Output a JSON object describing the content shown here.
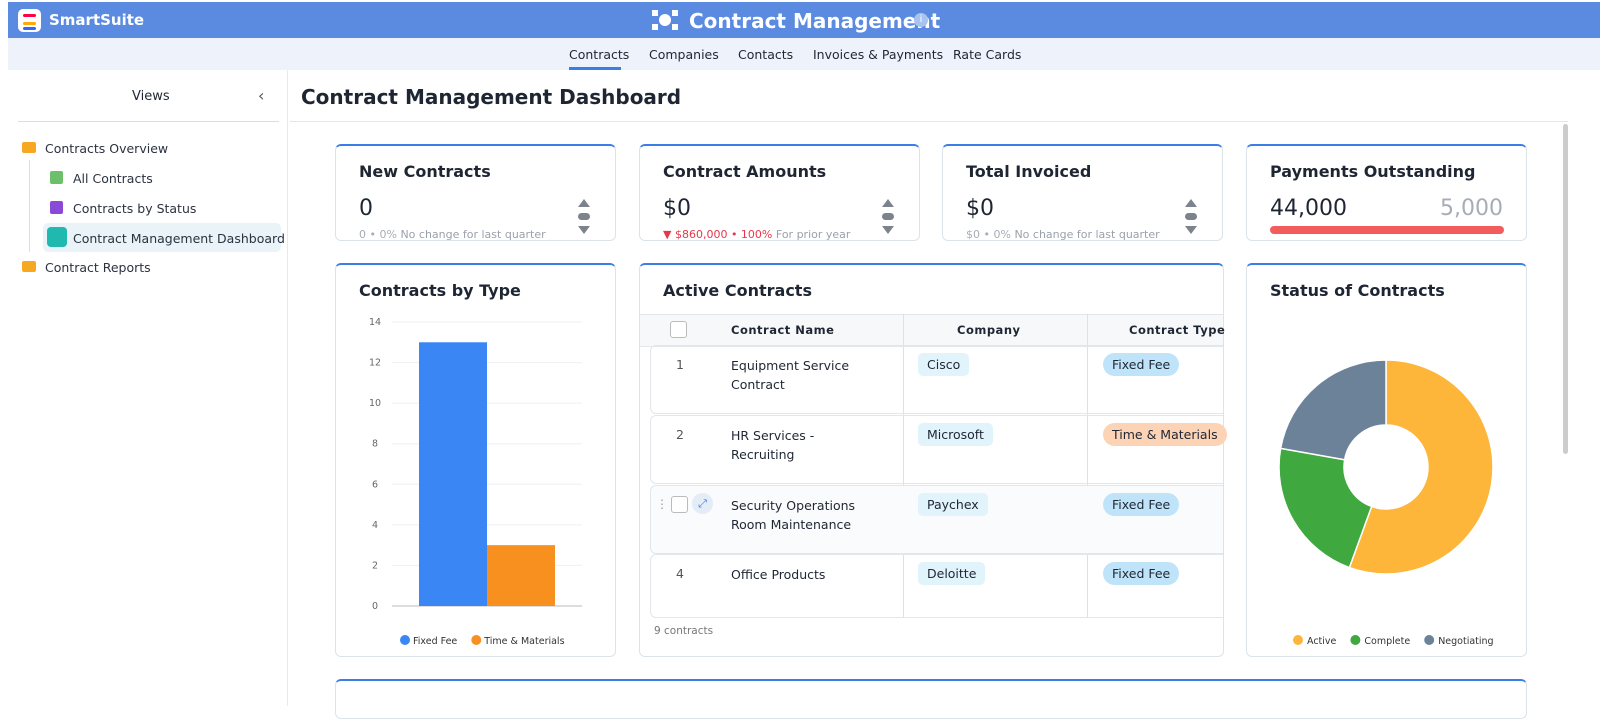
{
  "app": {
    "brand": "SmartSuite",
    "title": "Contract Management"
  },
  "tabs": [
    "Contracts",
    "Companies",
    "Contacts",
    "Invoices & Payments",
    "Rate Cards"
  ],
  "sidebar": {
    "header": "Views",
    "items": [
      "Contracts Overview",
      "All Contracts",
      "Contracts by Status",
      "Contract Management Dashboard",
      "Contract Reports"
    ]
  },
  "dashboard": {
    "title": "Contract Management Dashboard"
  },
  "kpis": [
    {
      "title": "New Contracts",
      "value": "0",
      "note": "0 • 0%",
      "note_text": "No change for last quarter"
    },
    {
      "title": "Contract Amounts",
      "value": "$0",
      "note": "$860,000 • 100%",
      "note_text": "For prior year"
    },
    {
      "title": "Total Invoiced",
      "value": "$0",
      "note": "$0 • 0%",
      "note_text": "No change for last quarter"
    },
    {
      "title": "Payments Outstanding",
      "value": "44,000",
      "target": "5,000"
    }
  ],
  "table": {
    "title": "Active Contracts",
    "columns": [
      "Contract Name",
      "Company",
      "Contract Type"
    ],
    "rows": [
      {
        "num": 1,
        "name": "Equipment Service Contract",
        "company": "Cisco",
        "type": "Fixed Fee"
      },
      {
        "num": 2,
        "name": "HR Services - Recruiting",
        "company": "Microsoft",
        "type": "Time & Materials"
      },
      {
        "name": "Security Operations Room Maintenance",
        "company": "Paychex",
        "type": "Fixed Fee"
      },
      {
        "num": 4,
        "name": "Office Products",
        "company": "Deloitte",
        "type": "Fixed Fee"
      }
    ],
    "footer": "9 contracts"
  },
  "chart_data": [
    {
      "type": "bar",
      "title": "Contracts by Type",
      "categories": [
        null
      ],
      "series": [
        {
          "name": "Fixed Fee",
          "color": "#3b86f5",
          "values": [
            13
          ]
        },
        {
          "name": "Time & Materials",
          "color": "#f7901e",
          "values": [
            3
          ]
        }
      ],
      "ylim": [
        0,
        14
      ],
      "yticks": [
        0,
        2,
        4,
        6,
        8,
        10,
        12,
        14
      ],
      "grid": true
    },
    {
      "type": "pie",
      "title": "Status of Contracts",
      "categories": [
        "Active",
        "Complete",
        "Negotiating"
      ],
      "values": [
        5,
        2,
        2
      ],
      "colors": [
        "#fdb63a",
        "#3fa83f",
        "#6b8299"
      ]
    }
  ]
}
